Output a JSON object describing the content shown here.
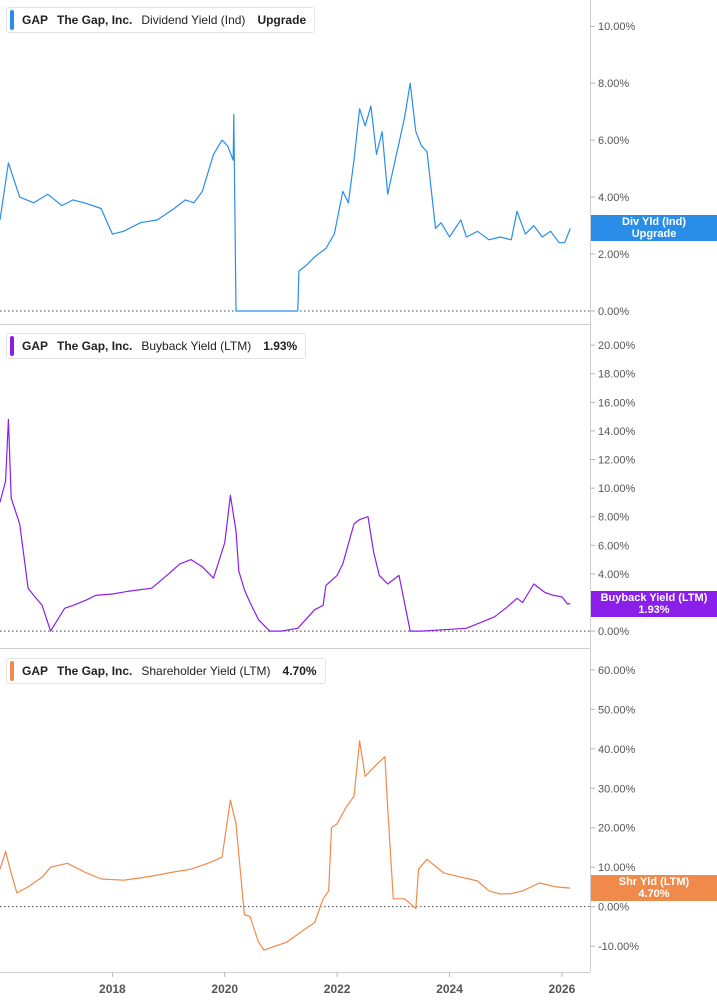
{
  "chart_data": [
    {
      "type": "line",
      "ticker": "GAP",
      "company": "The Gap, Inc.",
      "metric": "Dividend Yield (Ind)",
      "legend_value": "Upgrade",
      "tag_line1": "Div Yld (Ind)",
      "tag_line2": "Upgrade",
      "color": "#2a8ee8",
      "ylim": [
        0,
        10.5
      ],
      "yticks": [
        "0.00%",
        "2.00%",
        "4.00%",
        "6.00%",
        "8.00%",
        "10.00%"
      ],
      "ytick_values": [
        0,
        2,
        4,
        6,
        8,
        10
      ],
      "zero_line": 0,
      "x": [
        2016.0,
        2016.15,
        2016.35,
        2016.6,
        2016.85,
        2017.1,
        2017.3,
        2017.5,
        2017.8,
        2018.0,
        2018.2,
        2018.5,
        2018.8,
        2019.1,
        2019.3,
        2019.45,
        2019.6,
        2019.8,
        2019.95,
        2020.05,
        2020.15,
        2020.16,
        2020.2,
        2020.3,
        2021.3,
        2021.32,
        2021.45,
        2021.6,
        2021.8,
        2021.95,
        2022.1,
        2022.2,
        2022.3,
        2022.4,
        2022.5,
        2022.6,
        2022.7,
        2022.8,
        2022.9,
        2023.0,
        2023.1,
        2023.2,
        2023.3,
        2023.4,
        2023.5,
        2023.6,
        2023.7,
        2023.75,
        2023.85,
        2024.0,
        2024.2,
        2024.3,
        2024.5,
        2024.7,
        2024.9,
        2025.1,
        2025.2,
        2025.35,
        2025.5,
        2025.65,
        2025.8,
        2025.95,
        2026.05,
        2026.15
      ],
      "values": [
        3.2,
        5.2,
        4.0,
        3.8,
        4.1,
        3.7,
        3.9,
        3.8,
        3.6,
        2.7,
        2.8,
        3.1,
        3.2,
        3.6,
        3.9,
        3.8,
        4.2,
        5.5,
        6.0,
        5.8,
        5.3,
        6.9,
        0.0,
        0.0,
        0.0,
        1.4,
        1.6,
        1.9,
        2.2,
        2.7,
        4.2,
        3.8,
        5.3,
        7.1,
        6.5,
        7.2,
        5.5,
        6.3,
        4.1,
        5.0,
        5.9,
        6.8,
        8.0,
        6.3,
        5.8,
        5.6,
        3.8,
        2.9,
        3.1,
        2.6,
        3.2,
        2.6,
        2.8,
        2.5,
        2.6,
        2.5,
        3.5,
        2.7,
        3.0,
        2.6,
        2.8,
        2.4,
        2.4,
        2.9
      ]
    },
    {
      "type": "line",
      "ticker": "GAP",
      "company": "The Gap, Inc.",
      "metric": "Buyback Yield (LTM)",
      "legend_value": "1.93%",
      "tag_line1": "Buyback Yield (LTM)",
      "tag_line2": "1.93%",
      "color": "#8b1fea",
      "ylim": [
        -0.2,
        20.5
      ],
      "yticks": [
        "0.00%",
        "2.00%",
        "4.00%",
        "6.00%",
        "8.00%",
        "10.00%",
        "12.00%",
        "14.00%",
        "16.00%",
        "18.00%",
        "20.00%"
      ],
      "ytick_values": [
        0,
        2,
        4,
        6,
        8,
        10,
        12,
        14,
        16,
        18,
        20
      ],
      "zero_line": 0,
      "x": [
        2016.0,
        2016.1,
        2016.15,
        2016.2,
        2016.35,
        2016.5,
        2016.6,
        2016.75,
        2016.9,
        2017.15,
        2017.3,
        2017.55,
        2017.7,
        2018.0,
        2018.3,
        2018.7,
        2019.0,
        2019.2,
        2019.4,
        2019.6,
        2019.8,
        2020.0,
        2020.1,
        2020.2,
        2020.25,
        2020.35,
        2020.45,
        2020.6,
        2020.8,
        2021.0,
        2021.3,
        2021.6,
        2021.75,
        2021.8,
        2022.0,
        2022.1,
        2022.3,
        2022.4,
        2022.55,
        2022.65,
        2022.75,
        2022.9,
        2023.1,
        2023.3,
        2023.35,
        2023.5,
        2023.9,
        2024.3,
        2024.8,
        2025.0,
        2025.2,
        2025.3,
        2025.5,
        2025.7,
        2025.85,
        2026.0,
        2026.1,
        2026.15
      ],
      "values": [
        9.0,
        10.5,
        14.8,
        9.3,
        7.5,
        3.0,
        2.5,
        1.8,
        0.0,
        1.6,
        1.8,
        2.2,
        2.5,
        2.6,
        2.8,
        3.0,
        4.0,
        4.7,
        5.0,
        4.5,
        3.7,
        6.2,
        9.5,
        7.0,
        4.2,
        2.9,
        2.0,
        0.8,
        0.0,
        0.0,
        0.2,
        1.5,
        1.8,
        3.2,
        3.9,
        4.7,
        7.5,
        7.8,
        8.0,
        5.5,
        3.9,
        3.3,
        3.9,
        0.0,
        0.0,
        0.0,
        0.1,
        0.2,
        1.0,
        1.6,
        2.3,
        2.0,
        3.3,
        2.7,
        2.5,
        2.4,
        1.9,
        1.93
      ]
    },
    {
      "type": "line",
      "ticker": "GAP",
      "company": "The Gap, Inc.",
      "metric": "Shareholder Yield (LTM)",
      "legend_value": "4.70%",
      "tag_line1": "Shr Yld (LTM)",
      "tag_line2": "4.70%",
      "color": "#f08a4b",
      "ylim": [
        -12.5,
        62
      ],
      "yticks": [
        "-10.00%",
        "0.00%",
        "10.00%",
        "20.00%",
        "30.00%",
        "40.00%",
        "50.00%",
        "60.00%"
      ],
      "ytick_values": [
        -10,
        0,
        10,
        20,
        30,
        40,
        50,
        60
      ],
      "zero_line": 0,
      "x": [
        2016.0,
        2016.1,
        2016.2,
        2016.3,
        2016.5,
        2016.75,
        2016.9,
        2017.2,
        2017.5,
        2017.8,
        2018.2,
        2018.5,
        2018.8,
        2019.1,
        2019.4,
        2019.7,
        2019.95,
        2020.1,
        2020.2,
        2020.35,
        2020.45,
        2020.6,
        2020.7,
        2020.9,
        2021.1,
        2021.4,
        2021.6,
        2021.75,
        2021.85,
        2021.9,
        2022.0,
        2022.15,
        2022.3,
        2022.4,
        2022.5,
        2022.7,
        2022.85,
        2022.9,
        2023.0,
        2023.2,
        2023.4,
        2023.45,
        2023.6,
        2023.9,
        2024.2,
        2024.5,
        2024.7,
        2024.9,
        2025.1,
        2025.3,
        2025.6,
        2025.9,
        2026.15
      ],
      "values": [
        9.5,
        14.0,
        8.5,
        3.5,
        5.0,
        7.5,
        10.0,
        11.0,
        8.8,
        7.0,
        6.7,
        7.3,
        8.0,
        8.8,
        9.5,
        11.0,
        12.5,
        27.0,
        21.0,
        -2.0,
        -2.5,
        -9.0,
        -11.0,
        -10.0,
        -9.0,
        -6.0,
        -4.0,
        2.0,
        4.0,
        20.0,
        21.0,
        25.0,
        28.0,
        42.0,
        33.0,
        36.0,
        38.0,
        25.0,
        2.0,
        2.0,
        -0.5,
        9.5,
        12.0,
        8.5,
        7.5,
        6.5,
        4.0,
        3.2,
        3.3,
        4.0,
        6.0,
        5.0,
        4.7
      ]
    }
  ],
  "x_axis": {
    "ticks": [
      "2018",
      "2020",
      "2022",
      "2024",
      "2026"
    ],
    "tick_values": [
      2018,
      2020,
      2022,
      2024,
      2026
    ],
    "xlim": [
      2016.0,
      2026.5
    ]
  }
}
